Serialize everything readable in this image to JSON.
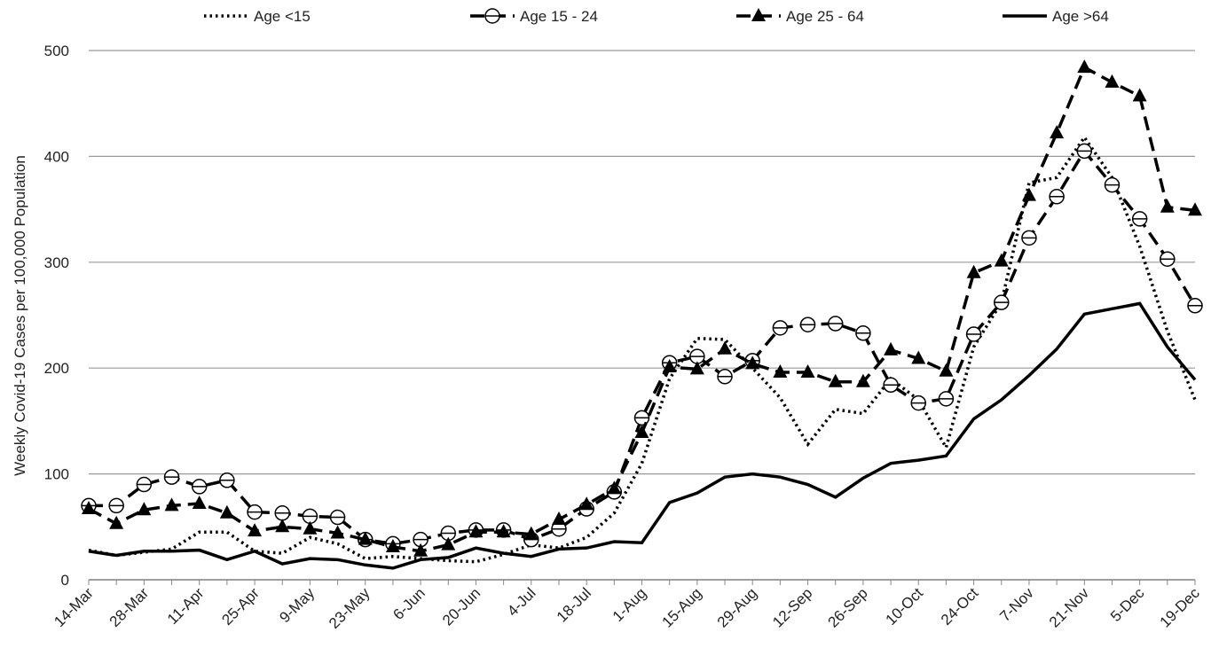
{
  "chart_data": {
    "type": "line",
    "y_label": "Weekly Covid-19 Cases per 100,000 Population",
    "categories": [
      "14-Mar",
      null,
      "28-Mar",
      null,
      "11-Apr",
      null,
      "25-Apr",
      null,
      "9-May",
      null,
      "23-May",
      null,
      "6-Jun",
      null,
      "20-Jun",
      null,
      "4-Jul",
      null,
      "18-Jul",
      null,
      "1-Aug",
      null,
      "15-Aug",
      null,
      "29-Aug",
      null,
      "12-Sep",
      null,
      "26-Sep",
      null,
      "10-Oct",
      null,
      "24-Oct",
      null,
      "7-Nov",
      null,
      "21-Nov",
      null,
      "5-Dec",
      null,
      "19-Dec"
    ],
    "series": [
      {
        "name": "Age <15",
        "color": "#000000",
        "style": "dotted",
        "marker": "none",
        "values": [
          28,
          23,
          26,
          29,
          45,
          45,
          27,
          25,
          40,
          34,
          20,
          22,
          20,
          18,
          17,
          24,
          33,
          30,
          40,
          63,
          110,
          190,
          228,
          227,
          200,
          172,
          128,
          161,
          157,
          190,
          170,
          125,
          220,
          262,
          375,
          380,
          418,
          380,
          315,
          235,
          170
        ]
      },
      {
        "name": "Age 15 - 24",
        "color": "#000000",
        "style": "dashed",
        "marker": "circle",
        "values": [
          70,
          70,
          90,
          97,
          88,
          94,
          64,
          63,
          60,
          59,
          38,
          34,
          38,
          44,
          47,
          47,
          38,
          48,
          67,
          83,
          153,
          205,
          211,
          192,
          207,
          238,
          241,
          242,
          233,
          184,
          167,
          171,
          232,
          262,
          323,
          362,
          405,
          373,
          341,
          303,
          259
        ]
      },
      {
        "name": "Age 25 - 64",
        "color": "#000000",
        "style": "dashed",
        "marker": "triangle",
        "values": [
          67,
          53,
          66,
          70,
          72,
          63,
          46,
          50,
          48,
          44,
          38,
          31,
          27,
          33,
          45,
          45,
          43,
          57,
          71,
          86,
          139,
          201,
          199,
          218,
          204,
          196,
          196,
          187,
          187,
          217,
          209,
          197,
          290,
          301,
          363,
          422,
          484,
          470,
          457,
          352,
          349
        ]
      },
      {
        "name": "Age >64",
        "color": "#000000",
        "style": "solid",
        "marker": "none",
        "values": [
          27,
          23,
          27,
          27,
          28,
          19,
          27,
          15,
          20,
          19,
          14,
          11,
          19,
          21,
          30,
          25,
          22,
          29,
          30,
          36,
          35,
          73,
          82,
          97,
          100,
          97,
          90,
          78,
          96,
          110,
          113,
          117,
          152,
          170,
          193,
          218,
          251,
          256,
          261,
          220,
          189
        ]
      }
    ],
    "ylim": [
      0,
      500
    ],
    "yticks": [
      0,
      100,
      200,
      300,
      400,
      500
    ],
    "grid": true,
    "legend": "top"
  }
}
